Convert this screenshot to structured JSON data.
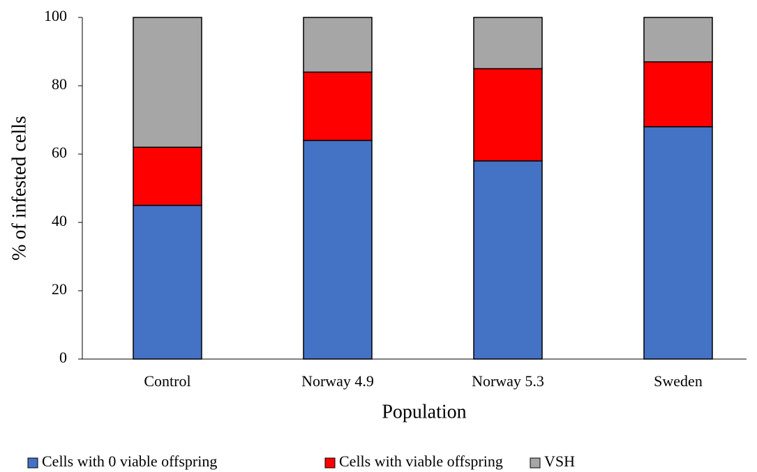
{
  "chart_data": {
    "type": "stacked-bar",
    "x_label": "Population",
    "y_label": "% of infested cells",
    "categories": [
      "Control",
      "Norway 4.9",
      "Norway 5.3",
      "Sweden"
    ],
    "series": [
      {
        "name": "Cells with 0 viable offspring",
        "color": "#4472c4",
        "values": [
          45,
          64,
          58,
          68
        ]
      },
      {
        "name": "Cells with viable offspring",
        "color": "#ff0000",
        "values": [
          17,
          20,
          27,
          19
        ]
      },
      {
        "name": "VSH",
        "color": "#a6a6a6",
        "values": [
          38,
          16,
          15,
          13
        ]
      }
    ],
    "ylim": [
      0,
      100
    ],
    "yticks": [
      0,
      20,
      40,
      60,
      80,
      100
    ],
    "grid": false,
    "legend": "bottom"
  }
}
